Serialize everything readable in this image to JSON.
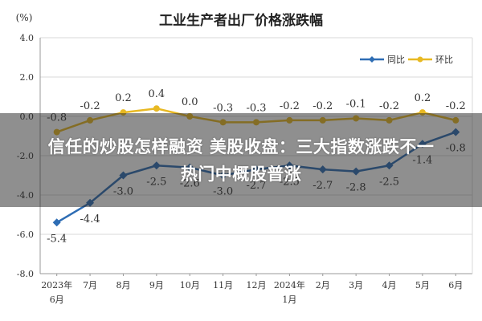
{
  "chart_data": {
    "type": "line",
    "title": "工业生产者出厂价格涨跌幅",
    "ylabel": "(%)",
    "ylim": [
      -8.0,
      4.0
    ],
    "yticks": [
      "4.0",
      "2.0",
      "0.0",
      "-2.0",
      "-4.0",
      "-6.0",
      "-8.0"
    ],
    "grid": true,
    "legend_position": "top-right",
    "categories": [
      {
        "line1": "2023年",
        "line2": "6月"
      },
      {
        "line1": "7月",
        "line2": ""
      },
      {
        "line1": "8月",
        "line2": ""
      },
      {
        "line1": "9月",
        "line2": ""
      },
      {
        "line1": "10月",
        "line2": ""
      },
      {
        "line1": "11月",
        "line2": ""
      },
      {
        "line1": "12月",
        "line2": ""
      },
      {
        "line1": "2024年",
        "line2": "1月"
      },
      {
        "line1": "2月",
        "line2": ""
      },
      {
        "line1": "3月",
        "line2": ""
      },
      {
        "line1": "4月",
        "line2": ""
      },
      {
        "line1": "5月",
        "line2": ""
      },
      {
        "line1": "6月",
        "line2": ""
      }
    ],
    "series": [
      {
        "name": "同比",
        "color": "#2e6db4",
        "marker": "diamond",
        "values": [
          -5.4,
          -4.4,
          -3.0,
          -2.5,
          -2.6,
          -3.0,
          -2.7,
          -2.5,
          -2.7,
          -2.8,
          -2.5,
          -1.4,
          -0.8
        ],
        "labels": [
          "-5.4",
          "-4.4",
          "-3.0",
          "-2.5",
          "-2.6",
          "-3.0",
          "-2.7",
          "-2.5",
          "-2.7",
          "-2.8",
          "-2.5",
          "-1.4",
          "-0.8"
        ]
      },
      {
        "name": "环比",
        "color": "#e8b923",
        "marker": "circle",
        "values": [
          -0.8,
          -0.2,
          0.2,
          0.4,
          0.0,
          -0.3,
          -0.3,
          -0.2,
          -0.2,
          -0.1,
          -0.2,
          0.2,
          -0.2
        ],
        "labels": [
          "-0.8",
          "-0.2",
          "0.2",
          "0.4",
          "0.0",
          "-0.3",
          "-0.3",
          "-0.2",
          "-0.2",
          "-0.1",
          "-0.2",
          "0.2",
          "-0.2"
        ]
      }
    ]
  },
  "overlay": {
    "line1": "信任的炒股怎样融资 美股收盘：三大指数涨跌不一",
    "line2": "热门中概股普涨"
  }
}
